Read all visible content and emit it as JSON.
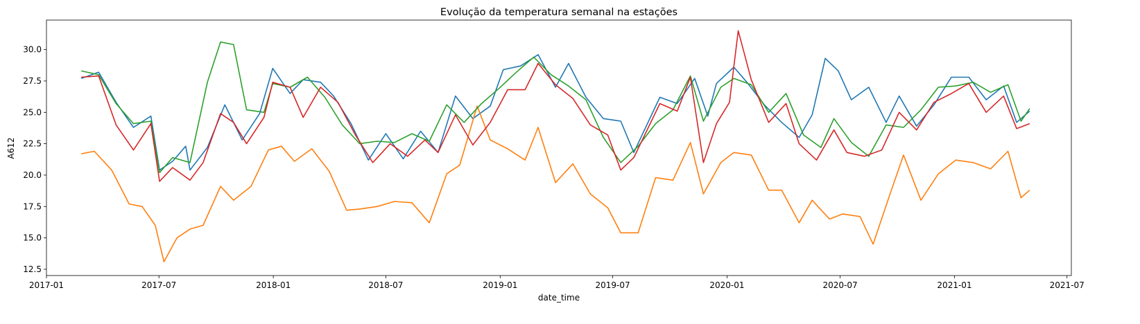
{
  "chart_data": {
    "type": "line",
    "title": "Evolução da temperatura semanal na estações",
    "xlabel": "date_time",
    "ylabel": "A612",
    "grid": false,
    "legend": "none",
    "x_range": [
      "2017-01-01",
      "2021-07-08"
    ],
    "ylim": [
      12.0,
      32.35
    ],
    "y_ticks": [
      12.5,
      15.0,
      17.5,
      20.0,
      22.5,
      25.0,
      27.5,
      30.0
    ],
    "y_tick_labels": [
      "12.5",
      "15.0",
      "17.5",
      "20.0",
      "22.5",
      "25.0",
      "27.5",
      "30.0"
    ],
    "x_ticks": [
      "2017-01-01",
      "2017-07-01",
      "2018-01-01",
      "2018-07-01",
      "2019-01-01",
      "2019-07-01",
      "2020-01-01",
      "2020-07-01",
      "2021-01-01",
      "2021-07-01"
    ],
    "x_tick_labels": [
      "2017-01",
      "2017-07",
      "2018-01",
      "2018-07",
      "2019-01",
      "2019-07",
      "2020-01",
      "2020-07",
      "2021-01",
      "2021-07"
    ],
    "series": [
      {
        "name": "series-1",
        "color": "#1f77b4",
        "points": [
          [
            "2017-02-26",
            27.7
          ],
          [
            "2017-03-26",
            28.2
          ],
          [
            "2017-04-23",
            25.8
          ],
          [
            "2017-05-21",
            23.8
          ],
          [
            "2017-06-18",
            24.7
          ],
          [
            "2017-07-02",
            20.4
          ],
          [
            "2017-07-23",
            21.1
          ],
          [
            "2017-08-13",
            22.3
          ],
          [
            "2017-08-20",
            20.4
          ],
          [
            "2017-09-17",
            22.2
          ],
          [
            "2017-10-15",
            25.6
          ],
          [
            "2017-11-12",
            22.8
          ],
          [
            "2017-12-10",
            24.9
          ],
          [
            "2017-12-31",
            28.5
          ],
          [
            "2018-01-28",
            26.5
          ],
          [
            "2018-02-18",
            27.6
          ],
          [
            "2018-03-18",
            27.4
          ],
          [
            "2018-04-08",
            26.3
          ],
          [
            "2018-05-06",
            24.1
          ],
          [
            "2018-06-03",
            21.2
          ],
          [
            "2018-07-01",
            23.3
          ],
          [
            "2018-07-29",
            21.3
          ],
          [
            "2018-08-26",
            23.5
          ],
          [
            "2018-09-23",
            21.8
          ],
          [
            "2018-10-21",
            26.3
          ],
          [
            "2018-11-18",
            24.5
          ],
          [
            "2018-12-16",
            25.5
          ],
          [
            "2019-01-06",
            28.4
          ],
          [
            "2019-02-03",
            28.7
          ],
          [
            "2019-03-03",
            29.6
          ],
          [
            "2019-03-31",
            27.0
          ],
          [
            "2019-04-21",
            28.9
          ],
          [
            "2019-05-19",
            26.2
          ],
          [
            "2019-06-16",
            24.5
          ],
          [
            "2019-07-14",
            24.3
          ],
          [
            "2019-08-04",
            21.8
          ],
          [
            "2019-09-15",
            26.2
          ],
          [
            "2019-10-13",
            25.7
          ],
          [
            "2019-11-10",
            27.7
          ],
          [
            "2019-12-01",
            24.7
          ],
          [
            "2019-12-15",
            27.3
          ],
          [
            "2020-01-12",
            28.6
          ],
          [
            "2020-02-02",
            27.4
          ],
          [
            "2020-03-01",
            25.6
          ],
          [
            "2020-03-29",
            24.2
          ],
          [
            "2020-04-26",
            23.0
          ],
          [
            "2020-05-17",
            24.8
          ],
          [
            "2020-06-07",
            29.3
          ],
          [
            "2020-06-28",
            28.3
          ],
          [
            "2020-07-19",
            26.0
          ],
          [
            "2020-08-16",
            27.0
          ],
          [
            "2020-09-13",
            24.2
          ],
          [
            "2020-10-04",
            26.3
          ],
          [
            "2020-11-01",
            23.9
          ],
          [
            "2020-11-29",
            25.6
          ],
          [
            "2020-12-27",
            27.8
          ],
          [
            "2021-01-24",
            27.8
          ],
          [
            "2021-02-21",
            26.0
          ],
          [
            "2021-03-21",
            27.1
          ],
          [
            "2021-04-11",
            24.2
          ],
          [
            "2021-05-02",
            25.1
          ]
        ]
      },
      {
        "name": "series-2",
        "color": "#ff7f0e",
        "points": [
          [
            "2017-02-26",
            21.7
          ],
          [
            "2017-03-19",
            21.9
          ],
          [
            "2017-04-16",
            20.4
          ],
          [
            "2017-05-14",
            17.7
          ],
          [
            "2017-06-04",
            17.5
          ],
          [
            "2017-06-25",
            16.0
          ],
          [
            "2017-07-09",
            13.1
          ],
          [
            "2017-07-30",
            15.0
          ],
          [
            "2017-08-20",
            15.7
          ],
          [
            "2017-09-10",
            16.0
          ],
          [
            "2017-10-08",
            19.1
          ],
          [
            "2017-10-29",
            18.0
          ],
          [
            "2017-11-26",
            19.1
          ],
          [
            "2017-12-24",
            22.0
          ],
          [
            "2018-01-14",
            22.3
          ],
          [
            "2018-02-04",
            21.1
          ],
          [
            "2018-03-04",
            22.1
          ],
          [
            "2018-04-01",
            20.3
          ],
          [
            "2018-04-29",
            17.2
          ],
          [
            "2018-05-20",
            17.3
          ],
          [
            "2018-06-17",
            17.5
          ],
          [
            "2018-07-15",
            17.9
          ],
          [
            "2018-08-12",
            17.8
          ],
          [
            "2018-09-09",
            16.2
          ],
          [
            "2018-10-07",
            20.1
          ],
          [
            "2018-10-28",
            20.8
          ],
          [
            "2018-11-25",
            25.5
          ],
          [
            "2018-12-16",
            22.8
          ],
          [
            "2019-01-13",
            22.1
          ],
          [
            "2019-02-10",
            21.2
          ],
          [
            "2019-03-03",
            23.8
          ],
          [
            "2019-03-31",
            19.4
          ],
          [
            "2019-04-28",
            20.9
          ],
          [
            "2019-05-26",
            18.5
          ],
          [
            "2019-06-23",
            17.4
          ],
          [
            "2019-07-14",
            15.4
          ],
          [
            "2019-08-11",
            15.4
          ],
          [
            "2019-09-08",
            19.8
          ],
          [
            "2019-10-06",
            19.6
          ],
          [
            "2019-11-03",
            22.6
          ],
          [
            "2019-11-24",
            18.5
          ],
          [
            "2019-12-22",
            21.0
          ],
          [
            "2020-01-12",
            21.8
          ],
          [
            "2020-02-09",
            21.6
          ],
          [
            "2020-03-08",
            18.8
          ],
          [
            "2020-03-29",
            18.8
          ],
          [
            "2020-04-26",
            16.2
          ],
          [
            "2020-05-17",
            18.0
          ],
          [
            "2020-06-14",
            16.5
          ],
          [
            "2020-07-05",
            16.9
          ],
          [
            "2020-08-02",
            16.7
          ],
          [
            "2020-08-23",
            14.5
          ],
          [
            "2020-09-20",
            18.6
          ],
          [
            "2020-10-11",
            21.6
          ],
          [
            "2020-11-08",
            18.0
          ],
          [
            "2020-12-06",
            20.1
          ],
          [
            "2021-01-03",
            21.2
          ],
          [
            "2021-01-31",
            21.0
          ],
          [
            "2021-02-28",
            20.5
          ],
          [
            "2021-03-28",
            21.9
          ],
          [
            "2021-04-18",
            18.2
          ],
          [
            "2021-05-02",
            18.8
          ]
        ]
      },
      {
        "name": "series-3",
        "color": "#2ca02c",
        "points": [
          [
            "2017-02-26",
            28.3
          ],
          [
            "2017-03-26",
            28.0
          ],
          [
            "2017-04-23",
            25.7
          ],
          [
            "2017-05-21",
            24.1
          ],
          [
            "2017-06-18",
            24.3
          ],
          [
            "2017-07-02",
            20.2
          ],
          [
            "2017-07-23",
            21.4
          ],
          [
            "2017-08-20",
            21.0
          ],
          [
            "2017-09-17",
            27.4
          ],
          [
            "2017-10-08",
            30.6
          ],
          [
            "2017-10-29",
            30.4
          ],
          [
            "2017-11-19",
            25.2
          ],
          [
            "2017-12-17",
            25.0
          ],
          [
            "2017-12-31",
            27.3
          ],
          [
            "2018-01-28",
            27.0
          ],
          [
            "2018-02-25",
            27.8
          ],
          [
            "2018-03-25",
            26.2
          ],
          [
            "2018-04-22",
            24.0
          ],
          [
            "2018-05-20",
            22.5
          ],
          [
            "2018-06-17",
            22.7
          ],
          [
            "2018-07-15",
            22.6
          ],
          [
            "2018-08-12",
            23.3
          ],
          [
            "2018-09-09",
            22.7
          ],
          [
            "2018-10-07",
            25.6
          ],
          [
            "2018-11-04",
            24.2
          ],
          [
            "2018-12-02",
            25.7
          ],
          [
            "2018-12-30",
            26.9
          ],
          [
            "2019-01-27",
            28.2
          ],
          [
            "2019-02-24",
            29.4
          ],
          [
            "2019-03-24",
            28.0
          ],
          [
            "2019-04-21",
            27.1
          ],
          [
            "2019-05-19",
            26.0
          ],
          [
            "2019-06-16",
            23.0
          ],
          [
            "2019-07-14",
            21.0
          ],
          [
            "2019-08-11",
            22.3
          ],
          [
            "2019-09-08",
            24.1
          ],
          [
            "2019-10-06",
            25.2
          ],
          [
            "2019-11-03",
            27.9
          ],
          [
            "2019-11-24",
            24.3
          ],
          [
            "2019-12-22",
            27.0
          ],
          [
            "2020-01-12",
            27.7
          ],
          [
            "2020-02-09",
            27.2
          ],
          [
            "2020-03-08",
            25.0
          ],
          [
            "2020-04-05",
            26.5
          ],
          [
            "2020-05-03",
            23.2
          ],
          [
            "2020-05-31",
            22.2
          ],
          [
            "2020-06-21",
            24.5
          ],
          [
            "2020-07-19",
            22.6
          ],
          [
            "2020-08-16",
            21.5
          ],
          [
            "2020-09-13",
            24.0
          ],
          [
            "2020-10-11",
            23.8
          ],
          [
            "2020-11-08",
            25.2
          ],
          [
            "2020-12-06",
            27.0
          ],
          [
            "2021-01-03",
            27.1
          ],
          [
            "2021-01-31",
            27.4
          ],
          [
            "2021-02-28",
            26.6
          ],
          [
            "2021-03-28",
            27.2
          ],
          [
            "2021-04-18",
            24.3
          ],
          [
            "2021-05-02",
            25.3
          ]
        ]
      },
      {
        "name": "series-4",
        "color": "#d62728",
        "points": [
          [
            "2017-02-26",
            27.8
          ],
          [
            "2017-03-26",
            27.9
          ],
          [
            "2017-04-23",
            24.0
          ],
          [
            "2017-05-21",
            22.0
          ],
          [
            "2017-06-18",
            24.1
          ],
          [
            "2017-07-02",
            19.5
          ],
          [
            "2017-07-23",
            20.6
          ],
          [
            "2017-08-20",
            19.6
          ],
          [
            "2017-09-10",
            21.0
          ],
          [
            "2017-10-08",
            24.9
          ],
          [
            "2017-10-29",
            24.2
          ],
          [
            "2017-11-19",
            22.5
          ],
          [
            "2017-12-17",
            24.6
          ],
          [
            "2017-12-31",
            27.4
          ],
          [
            "2018-01-28",
            27.0
          ],
          [
            "2018-02-18",
            24.6
          ],
          [
            "2018-03-18",
            27.0
          ],
          [
            "2018-04-15",
            25.8
          ],
          [
            "2018-05-13",
            23.2
          ],
          [
            "2018-06-10",
            21.0
          ],
          [
            "2018-07-08",
            22.5
          ],
          [
            "2018-08-05",
            21.5
          ],
          [
            "2018-09-02",
            22.8
          ],
          [
            "2018-09-23",
            21.8
          ],
          [
            "2018-10-21",
            24.8
          ],
          [
            "2018-11-18",
            22.4
          ],
          [
            "2018-12-16",
            24.2
          ],
          [
            "2019-01-13",
            26.8
          ],
          [
            "2019-02-10",
            26.8
          ],
          [
            "2019-03-03",
            28.9
          ],
          [
            "2019-03-31",
            27.2
          ],
          [
            "2019-04-28",
            26.1
          ],
          [
            "2019-05-26",
            24.0
          ],
          [
            "2019-06-23",
            23.2
          ],
          [
            "2019-07-14",
            20.4
          ],
          [
            "2019-08-04",
            21.4
          ],
          [
            "2019-09-15",
            25.7
          ],
          [
            "2019-10-13",
            25.1
          ],
          [
            "2019-11-03",
            27.8
          ],
          [
            "2019-11-24",
            21.0
          ],
          [
            "2019-12-15",
            24.1
          ],
          [
            "2020-01-05",
            25.8
          ],
          [
            "2020-01-19",
            31.5
          ],
          [
            "2020-02-09",
            27.6
          ],
          [
            "2020-03-08",
            24.2
          ],
          [
            "2020-04-05",
            25.7
          ],
          [
            "2020-04-26",
            22.5
          ],
          [
            "2020-05-24",
            21.2
          ],
          [
            "2020-06-21",
            23.6
          ],
          [
            "2020-07-12",
            21.8
          ],
          [
            "2020-08-09",
            21.5
          ],
          [
            "2020-09-06",
            22.0
          ],
          [
            "2020-10-04",
            25.0
          ],
          [
            "2020-11-01",
            23.6
          ],
          [
            "2020-11-29",
            25.8
          ],
          [
            "2020-12-27",
            26.5
          ],
          [
            "2021-01-24",
            27.3
          ],
          [
            "2021-02-21",
            25.0
          ],
          [
            "2021-03-21",
            26.3
          ],
          [
            "2021-04-11",
            23.7
          ],
          [
            "2021-05-02",
            24.1
          ]
        ]
      }
    ]
  }
}
